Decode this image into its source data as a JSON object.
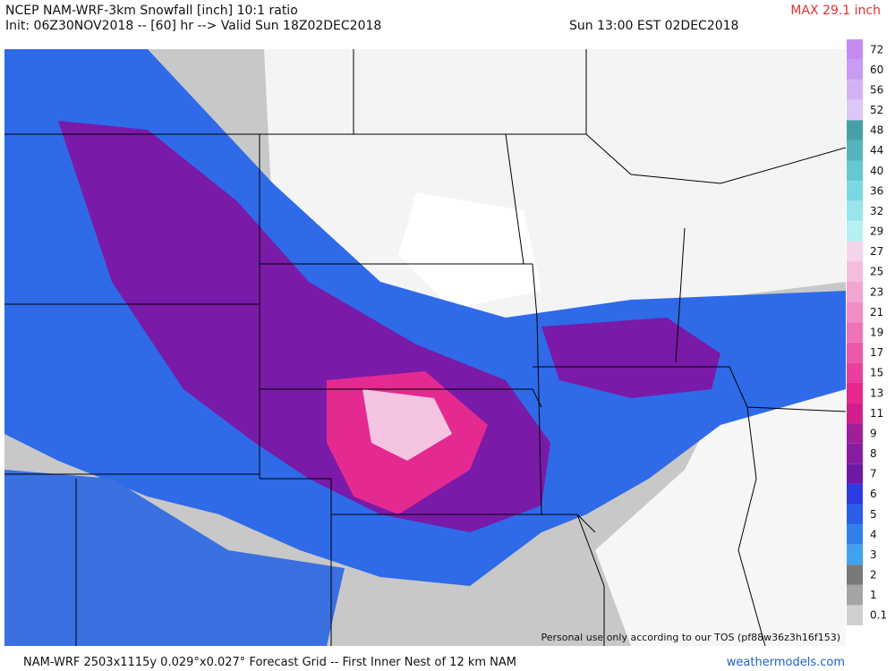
{
  "header": {
    "title": "NCEP NAM-WRF-3km Snowfall [inch] 10:1 ratio",
    "init": "Init: 06Z30NOV2018 -- [60] hr --> Valid Sun 18Z02DEC2018",
    "valid_local": "Sun 13:00 EST 02DEC2018",
    "max": "MAX 29.1 inch"
  },
  "colorbar": {
    "levels": [
      {
        "label": "72",
        "color": "#c48cf0"
      },
      {
        "label": "60",
        "color": "#c89cf2"
      },
      {
        "label": "56",
        "color": "#d2b2f4"
      },
      {
        "label": "52",
        "color": "#dcc8f6"
      },
      {
        "label": "48",
        "color": "#46a0a8"
      },
      {
        "label": "44",
        "color": "#54b4bc"
      },
      {
        "label": "40",
        "color": "#64c8d0"
      },
      {
        "label": "36",
        "color": "#7cd8e0"
      },
      {
        "label": "32",
        "color": "#98e6ec"
      },
      {
        "label": "29",
        "color": "#b4f0f4"
      },
      {
        "label": "27",
        "color": "#f4d4ea"
      },
      {
        "label": "25",
        "color": "#f4bcde"
      },
      {
        "label": "23",
        "color": "#f2a4d2"
      },
      {
        "label": "21",
        "color": "#f08cc6"
      },
      {
        "label": "19",
        "color": "#ee72b8"
      },
      {
        "label": "17",
        "color": "#ec58aa"
      },
      {
        "label": "15",
        "color": "#e8409c"
      },
      {
        "label": "13",
        "color": "#e4288e"
      },
      {
        "label": "11",
        "color": "#d21e8c"
      },
      {
        "label": "9",
        "color": "#a01e9a"
      },
      {
        "label": "8",
        "color": "#8a1ca0"
      },
      {
        "label": "7",
        "color": "#6e1aa6"
      },
      {
        "label": "6",
        "color": "#2c3ce0"
      },
      {
        "label": "5",
        "color": "#2a5ee6"
      },
      {
        "label": "4",
        "color": "#3080ec"
      },
      {
        "label": "3",
        "color": "#42a0f0"
      },
      {
        "label": "2",
        "color": "#787878"
      },
      {
        "label": "1",
        "color": "#a4a4a4"
      },
      {
        "label": "0.1",
        "color": "#d0d0d0"
      }
    ]
  },
  "map": {
    "tos_note": "Personal use only according to our TOS (pf88w36z3h16f153)"
  },
  "footer": {
    "grid_info": "NAM-WRF 2503x1115y 0.029°x0.027° Forecast Grid -- First Inner Nest of 12 km NAM",
    "site": "weathermodels.com"
  }
}
